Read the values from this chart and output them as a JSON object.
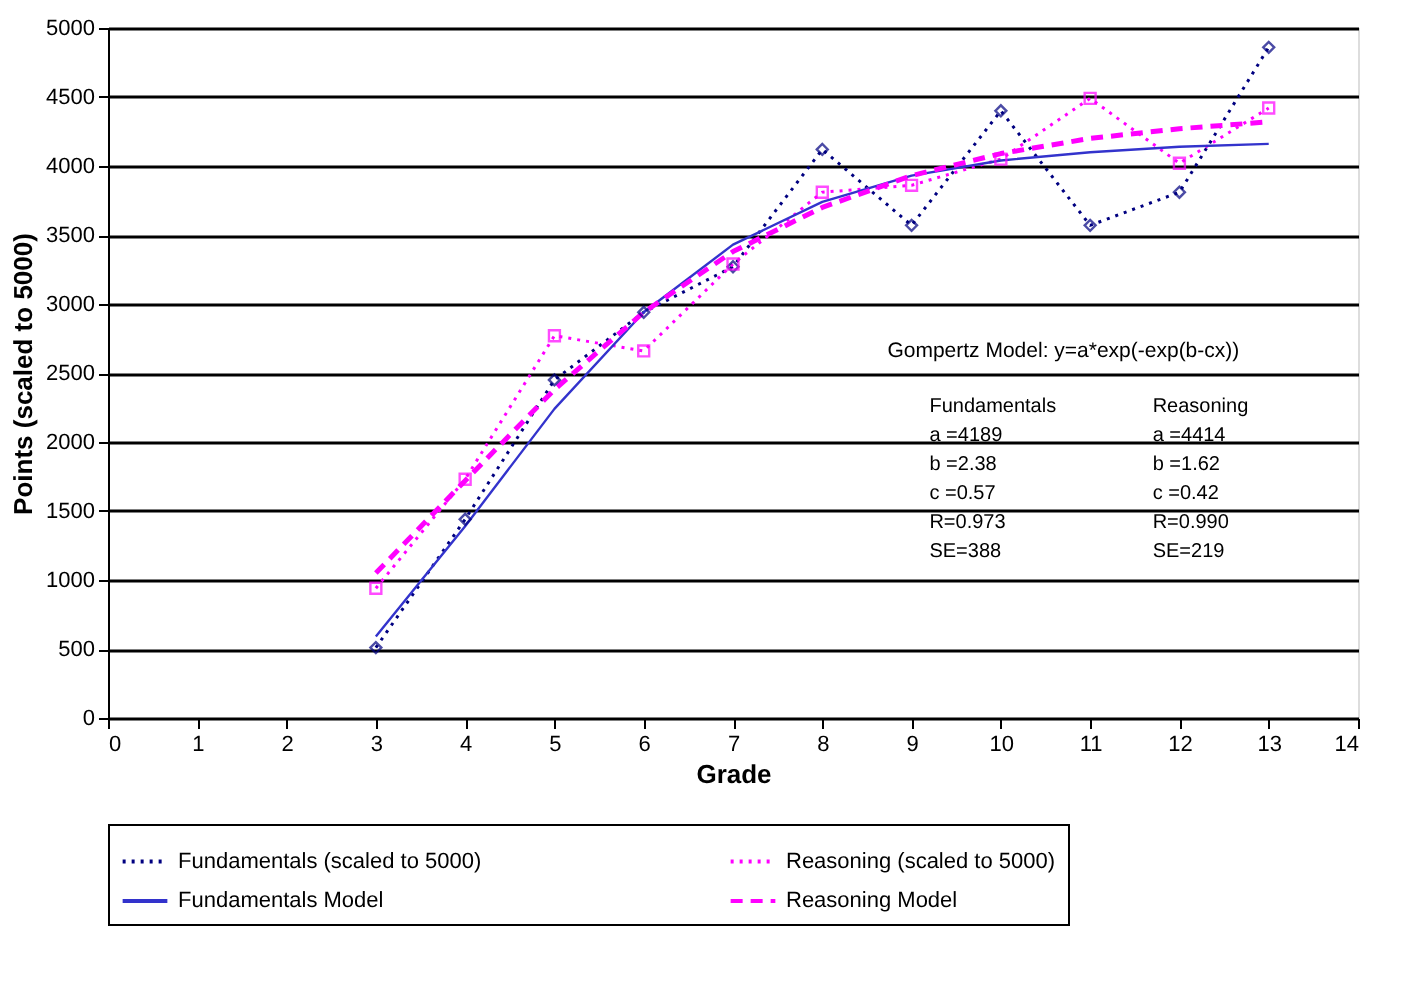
{
  "chart_data": {
    "type": "line",
    "xlabel": "Grade",
    "ylabel": "Points (scaled to 5000)",
    "xlim": [
      0,
      14
    ],
    "xticks": [
      0,
      1,
      2,
      3,
      4,
      5,
      6,
      7,
      8,
      9,
      10,
      11,
      12,
      13,
      14
    ],
    "ylim": [
      0,
      5000
    ],
    "yticks": [
      0,
      500,
      1000,
      1500,
      2000,
      2500,
      3000,
      3500,
      4000,
      4500,
      5000
    ],
    "grid": "y",
    "legend": "bottom",
    "series": [
      {
        "name": "Fundamentals (scaled to 5000)",
        "color": "#000080",
        "marker": "diamond",
        "line_style": "dotted",
        "x": [
          3,
          4,
          5,
          6,
          7,
          8,
          9,
          10,
          11,
          12,
          13
        ],
        "values": [
          510,
          1440,
          2450,
          2940,
          3270,
          4120,
          3570,
          4400,
          3570,
          3810,
          4860
        ]
      },
      {
        "name": "Reasoning (scaled to 5000)",
        "color": "#ff00ff",
        "marker": "square",
        "line_style": "dotted",
        "x": [
          3,
          4,
          5,
          6,
          7,
          8,
          9,
          10,
          11,
          12,
          13
        ],
        "values": [
          940,
          1730,
          2770,
          2660,
          3290,
          3810,
          3860,
          4050,
          4490,
          4020,
          4420
        ]
      },
      {
        "name": "Fundamentals Model",
        "color": "#3333cc",
        "marker": "none",
        "line_style": "solid",
        "x": [
          3,
          4,
          5,
          6,
          7,
          8,
          9,
          10,
          11,
          12,
          13
        ],
        "values": [
          590,
          1390,
          2240,
          2940,
          3430,
          3740,
          3930,
          4040,
          4100,
          4140,
          4160
        ]
      },
      {
        "name": "Reasoning Model",
        "color": "#ff00ff",
        "marker": "none",
        "line_style": "dashed",
        "x": [
          3,
          4,
          5,
          6,
          7,
          8,
          9,
          10,
          11,
          12,
          13
        ],
        "values": [
          1050,
          1720,
          2380,
          2940,
          3380,
          3700,
          3930,
          4090,
          4200,
          4270,
          4320
        ]
      }
    ],
    "annotations": [
      "Gompertz Model: y=a*exp(-exp(b-cx))",
      "Fundamentals\na =4189\nb =2.38\nc =0.57\nR=0.973\nSE=388",
      "Reasoning\na =4414\nb =1.62\nc =0.42\nR=0.990\nSE=219"
    ]
  }
}
